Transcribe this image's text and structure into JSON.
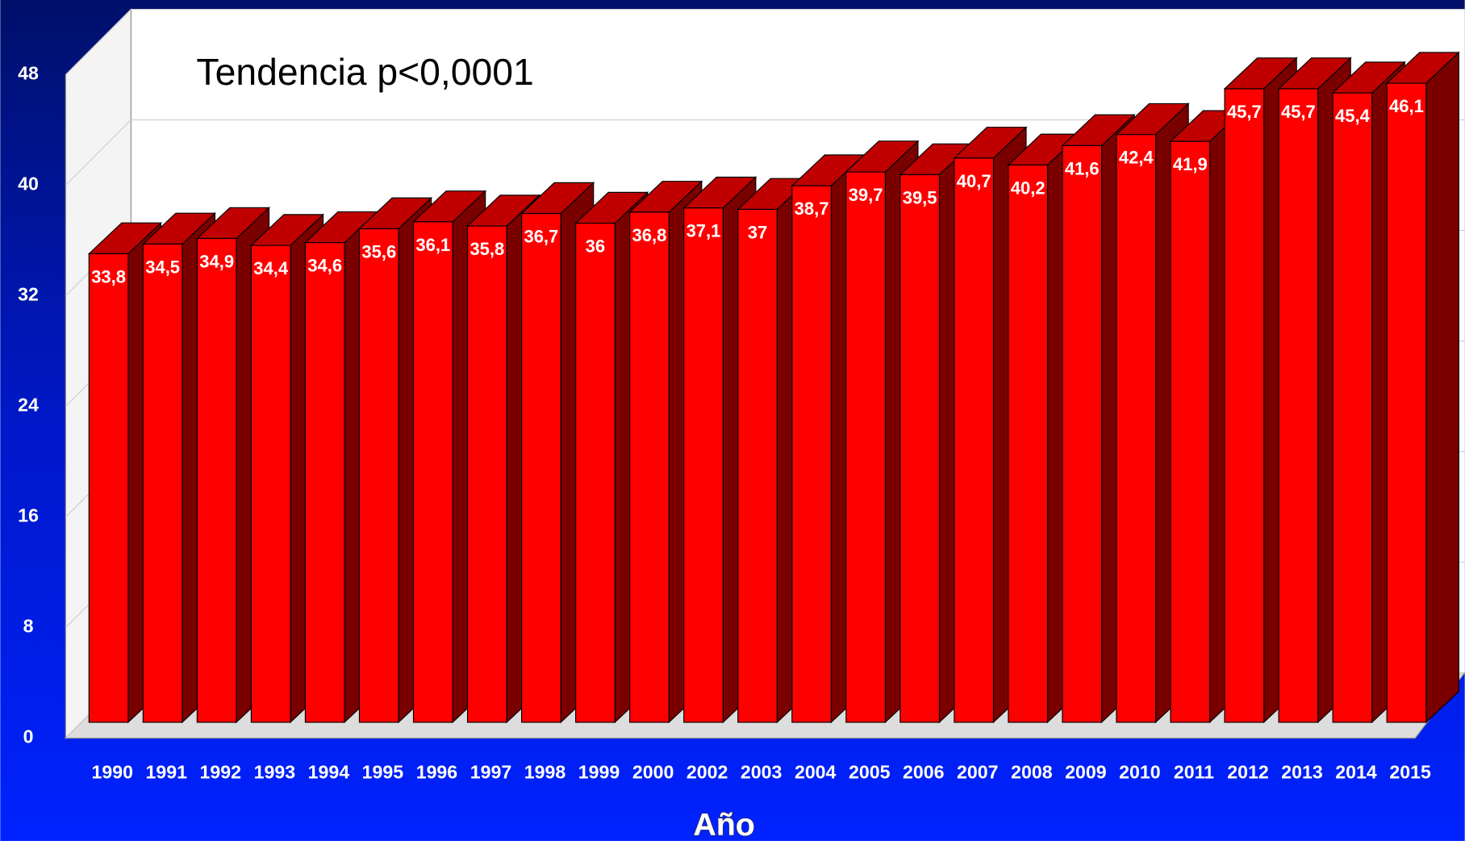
{
  "chart_data": {
    "type": "bar",
    "annotation": "Tendencia p<0,0001",
    "x_label": "Año",
    "categories": [
      "1990",
      "1991",
      "1992",
      "1993",
      "1994",
      "1995",
      "1996",
      "1997",
      "1998",
      "1999",
      "2000",
      "2002",
      "2003",
      "2004",
      "2005",
      "2006",
      "2007",
      "2008",
      "2009",
      "2010",
      "2011",
      "2012",
      "2013",
      "2014",
      "2015"
    ],
    "values": [
      33.8,
      34.5,
      34.9,
      34.4,
      34.6,
      35.6,
      36.1,
      35.8,
      36.7,
      36,
      36.8,
      37.1,
      37,
      38.7,
      39.7,
      39.5,
      40.7,
      40.2,
      41.6,
      42.4,
      41.9,
      45.7,
      45.7,
      45.4,
      46.1
    ],
    "value_labels": [
      "33,8",
      "34,5",
      "34,9",
      "34,4",
      "34,6",
      "35,6",
      "36,1",
      "35,8",
      "36,7",
      "36",
      "36,8",
      "37,1",
      "37",
      "38,7",
      "39,7",
      "39,5",
      "40,7",
      "40,2",
      "41,6",
      "42,4",
      "41,9",
      "45,7",
      "45,7",
      "45,4",
      "46,1"
    ],
    "color": "#ff0000",
    "ylim": [
      0,
      48
    ],
    "yticks": [
      0,
      8,
      16,
      24,
      32,
      40,
      48
    ],
    "grid": true
  }
}
